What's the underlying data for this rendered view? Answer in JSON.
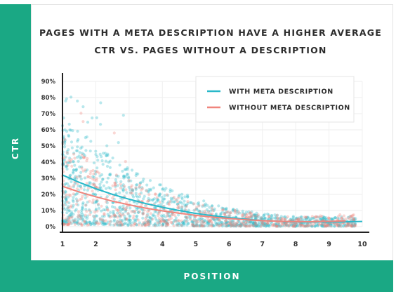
{
  "chart_data": {
    "type": "scatter",
    "title_lines": [
      "PAGES WITH A META DESCRIPTION HAVE A HIGHER AVERAGE",
      "CTR VS. PAGES WITHOUT A DESCRIPTION"
    ],
    "xlabel": "POSITION",
    "ylabel": "CTR",
    "xlim": [
      1,
      10
    ],
    "ylim": [
      0,
      90
    ],
    "x_ticks": [
      "1",
      "2",
      "3",
      "4",
      "5",
      "6",
      "7",
      "8",
      "9",
      "10"
    ],
    "y_ticks": [
      "0%",
      "10%",
      "20%",
      "30%",
      "40%",
      "50%",
      "60%",
      "70%",
      "80%",
      "90%"
    ],
    "grid": true,
    "legend_position": "top-right",
    "series": [
      {
        "name": "WITH META DESCRIPTION",
        "color": "#29b8c9",
        "trend_x": [
          1,
          1.5,
          2,
          2.5,
          3,
          3.5,
          4,
          4.5,
          5,
          5.5,
          6,
          6.5,
          7,
          7.5,
          8,
          8.5,
          9,
          9.5,
          10
        ],
        "trend_y": [
          32,
          27.5,
          23.5,
          20,
          17,
          14.3,
          12,
          10,
          8.2,
          6.8,
          5.6,
          4.6,
          3.8,
          3.3,
          3,
          2.9,
          2.9,
          3,
          3.2
        ]
      },
      {
        "name": "WITHOUT META DESCRIPTION",
        "color": "#f0857d",
        "trend_x": [
          1,
          1.5,
          2,
          2.5,
          3,
          3.5,
          4,
          4.5,
          5,
          5.5,
          6,
          6.5,
          7,
          7.5,
          8,
          8.5,
          9,
          9.5
        ],
        "trend_y": [
          25,
          21.5,
          18.5,
          15.8,
          13.5,
          11.5,
          9.8,
          8.3,
          7,
          5.9,
          5,
          4.3,
          3.7,
          3.3,
          3.1,
          3.1,
          3.3,
          3.6
        ]
      }
    ]
  }
}
